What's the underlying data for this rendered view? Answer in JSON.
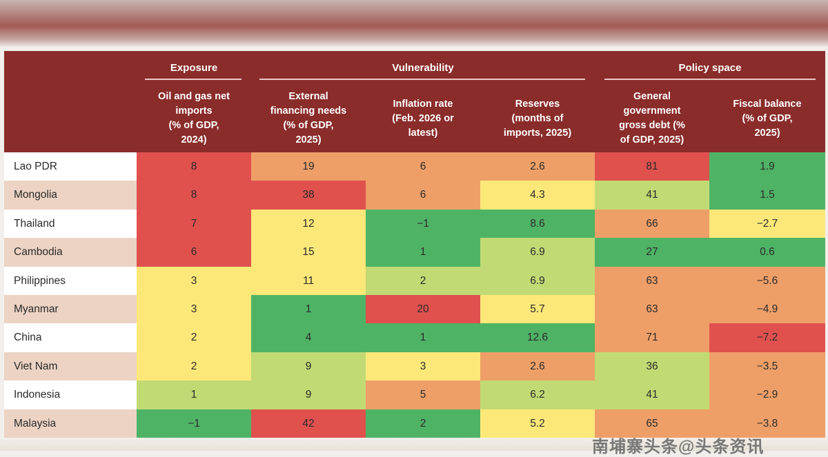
{
  "chart_data": {
    "type": "table",
    "column_groups": [
      {
        "label": "Exposure",
        "columns": [
          0
        ]
      },
      {
        "label": "Vulnerability",
        "columns": [
          1,
          2,
          3
        ]
      },
      {
        "label": "Policy space",
        "columns": [
          4,
          5
        ]
      }
    ],
    "columns": [
      "Oil and gas net\nimports\n(% of GDP,\n2024)",
      "External\nfinancing needs\n(% of GDP,\n2025)",
      "Inflation rate\n(Feb. 2026 or\nlatest)",
      "Reserves\n(months of\nimports, 2025)",
      "General\ngovernment\ngross debt (%\nof GDP, 2025)",
      "Fiscal balance\n(% of GDP,\n2025)"
    ],
    "rows": [
      {
        "country": "Lao PDR",
        "values": [
          "8",
          "19",
          "6",
          "2.6",
          "81",
          "1.9"
        ]
      },
      {
        "country": "Mongolia",
        "values": [
          "8",
          "38",
          "6",
          "4.3",
          "41",
          "1.5"
        ]
      },
      {
        "country": "Thailand",
        "values": [
          "7",
          "12",
          "−1",
          "8.6",
          "66",
          "−2.7"
        ]
      },
      {
        "country": "Cambodia",
        "values": [
          "6",
          "15",
          "1",
          "6.9",
          "27",
          "0.6"
        ]
      },
      {
        "country": "Philippines",
        "values": [
          "3",
          "11",
          "2",
          "6.9",
          "63",
          "−5.6"
        ]
      },
      {
        "country": "Myanmar",
        "values": [
          "3",
          "1",
          "20",
          "5.7",
          "63",
          "−4.9"
        ]
      },
      {
        "country": "China",
        "values": [
          "2",
          "4",
          "1",
          "12.6",
          "71",
          "−7.2"
        ]
      },
      {
        "country": "Viet Nam",
        "values": [
          "2",
          "9",
          "3",
          "2.6",
          "36",
          "−3.5"
        ]
      },
      {
        "country": "Indonesia",
        "values": [
          "1",
          "9",
          "5",
          "6.2",
          "41",
          "−2.9"
        ]
      },
      {
        "country": "Malaysia",
        "values": [
          "−1",
          "42",
          "2",
          "5.2",
          "65",
          "−3.8"
        ]
      }
    ],
    "risk_levels": [
      [
        "red",
        "orange",
        "orange",
        "orange",
        "red",
        "green"
      ],
      [
        "red",
        "red",
        "orange",
        "yellow",
        "lightgreen",
        "green"
      ],
      [
        "red",
        "yellow",
        "green",
        "green",
        "orange",
        "yellow"
      ],
      [
        "red",
        "yellow",
        "green",
        "lightgreen",
        "green",
        "green"
      ],
      [
        "yellow",
        "yellow",
        "lightgreen",
        "lightgreen",
        "orange",
        "orange"
      ],
      [
        "yellow",
        "green",
        "red",
        "yellow",
        "orange",
        "orange"
      ],
      [
        "yellow",
        "green",
        "green",
        "green",
        "orange",
        "red"
      ],
      [
        "yellow",
        "lightgreen",
        "yellow",
        "orange",
        "lightgreen",
        "orange"
      ],
      [
        "lightgreen",
        "lightgreen",
        "orange",
        "lightgreen",
        "lightgreen",
        "orange"
      ],
      [
        "green",
        "red",
        "green",
        "yellow",
        "orange",
        "orange"
      ]
    ],
    "row_label_shades": [
      "white",
      "tan",
      "white",
      "tan",
      "white",
      "tan",
      "white",
      "tan",
      "white",
      "tan"
    ]
  },
  "colors": {
    "header": "#8a2c2a",
    "red": "#e0514e",
    "orange": "#ee9f68",
    "yellow": "#fbe879",
    "lightgreen": "#c1da74",
    "green": "#4fb366",
    "white": "#ffffff",
    "tan": "#ecd3c4"
  },
  "watermark": "南埔寨头条@头条资讯"
}
